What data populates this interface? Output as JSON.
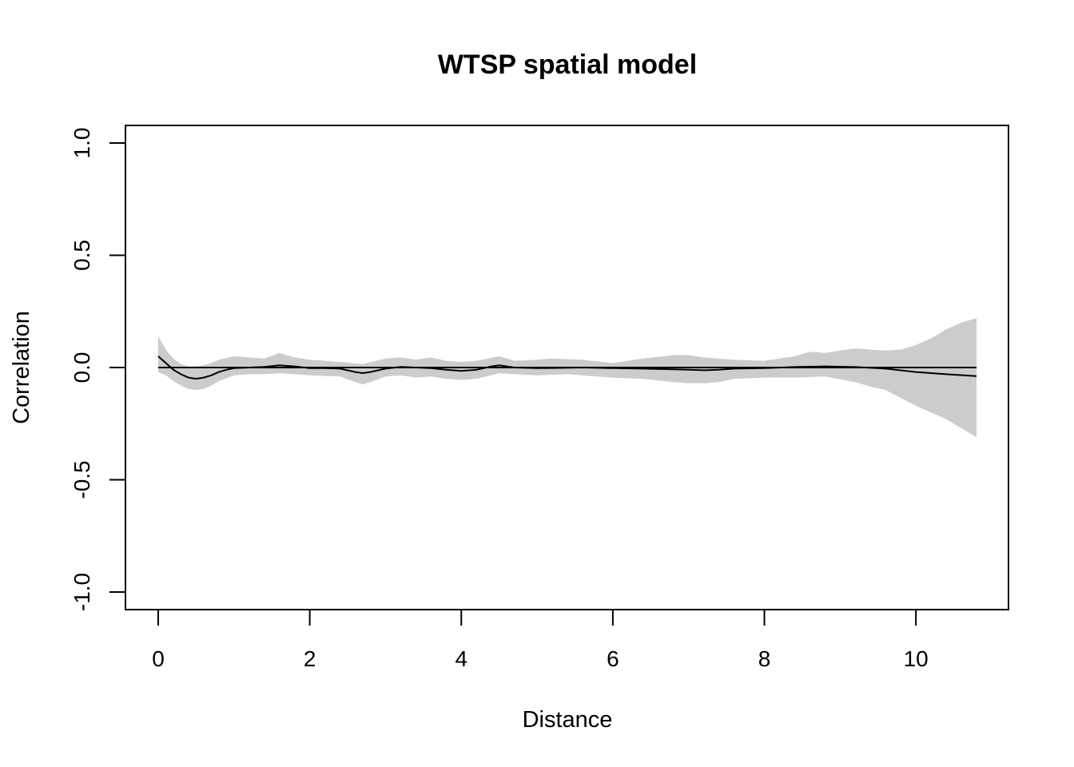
{
  "chart_data": {
    "type": "line",
    "title": "WTSP spatial model",
    "xlabel": "Distance",
    "ylabel": "Correlation",
    "xlim": [
      0,
      10.8
    ],
    "ylim": [
      -1.0,
      1.0
    ],
    "x_ticks": [
      0,
      2,
      4,
      6,
      8,
      10
    ],
    "x_tick_labels": [
      "0",
      "2",
      "4",
      "6",
      "8",
      "10"
    ],
    "y_ticks": [
      -1.0,
      -0.5,
      0.0,
      0.5,
      1.0
    ],
    "y_tick_labels": [
      "-1.0",
      "-0.5",
      "0.0",
      "0.5",
      "1.0"
    ],
    "grid": false,
    "legend": "none",
    "reference_line": 0.0,
    "colors": {
      "line": "#000000",
      "band": "#cccccc",
      "reference": "#000000"
    },
    "series": [
      {
        "values": [
          [
            0.0,
            0.05
          ],
          [
            0.1,
            0.02
          ],
          [
            0.2,
            -0.01
          ],
          [
            0.3,
            -0.03
          ],
          [
            0.4,
            -0.045
          ],
          [
            0.5,
            -0.05
          ],
          [
            0.6,
            -0.045
          ],
          [
            0.7,
            -0.035
          ],
          [
            0.8,
            -0.02
          ],
          [
            0.9,
            -0.01
          ],
          [
            1.0,
            -0.003
          ],
          [
            1.2,
            0.0
          ],
          [
            1.4,
            0.003
          ],
          [
            1.6,
            0.01
          ],
          [
            1.8,
            0.005
          ],
          [
            2.0,
            -0.003
          ],
          [
            2.2,
            -0.003
          ],
          [
            2.4,
            -0.005
          ],
          [
            2.6,
            -0.02
          ],
          [
            2.7,
            -0.025
          ],
          [
            2.8,
            -0.02
          ],
          [
            3.0,
            -0.005
          ],
          [
            3.2,
            0.003
          ],
          [
            3.4,
            0.0
          ],
          [
            3.6,
            -0.003
          ],
          [
            3.8,
            -0.01
          ],
          [
            4.0,
            -0.015
          ],
          [
            4.2,
            -0.01
          ],
          [
            4.4,
            0.005
          ],
          [
            4.5,
            0.01
          ],
          [
            4.7,
            0.0
          ],
          [
            5.0,
            -0.003
          ],
          [
            5.2,
            -0.002
          ],
          [
            5.6,
            0.0
          ],
          [
            6.0,
            -0.003
          ],
          [
            6.4,
            -0.005
          ],
          [
            6.8,
            -0.008
          ],
          [
            7.0,
            -0.01
          ],
          [
            7.2,
            -0.012
          ],
          [
            7.4,
            -0.01
          ],
          [
            7.6,
            -0.005
          ],
          [
            8.0,
            -0.003
          ],
          [
            8.4,
            0.002
          ],
          [
            8.8,
            0.005
          ],
          [
            9.2,
            0.002
          ],
          [
            9.6,
            -0.005
          ],
          [
            10.0,
            -0.02
          ],
          [
            10.4,
            -0.03
          ],
          [
            10.8,
            -0.038
          ]
        ]
      }
    ],
    "band": {
      "upper": [
        [
          0.0,
          0.14
        ],
        [
          0.1,
          0.08
        ],
        [
          0.2,
          0.04
        ],
        [
          0.3,
          0.015
        ],
        [
          0.4,
          0.005
        ],
        [
          0.5,
          0.005
        ],
        [
          0.6,
          0.01
        ],
        [
          0.7,
          0.02
        ],
        [
          0.8,
          0.035
        ],
        [
          1.0,
          0.05
        ],
        [
          1.2,
          0.045
        ],
        [
          1.4,
          0.04
        ],
        [
          1.6,
          0.065
        ],
        [
          1.8,
          0.045
        ],
        [
          2.0,
          0.035
        ],
        [
          2.4,
          0.025
        ],
        [
          2.7,
          0.015
        ],
        [
          3.0,
          0.04
        ],
        [
          3.2,
          0.045
        ],
        [
          3.4,
          0.035
        ],
        [
          3.6,
          0.045
        ],
        [
          3.8,
          0.03
        ],
        [
          4.0,
          0.025
        ],
        [
          4.2,
          0.03
        ],
        [
          4.5,
          0.05
        ],
        [
          4.7,
          0.03
        ],
        [
          5.0,
          0.035
        ],
        [
          5.2,
          0.04
        ],
        [
          5.6,
          0.035
        ],
        [
          6.0,
          0.02
        ],
        [
          6.4,
          0.04
        ],
        [
          6.8,
          0.055
        ],
        [
          7.0,
          0.055
        ],
        [
          7.2,
          0.045
        ],
        [
          7.6,
          0.035
        ],
        [
          8.0,
          0.03
        ],
        [
          8.4,
          0.05
        ],
        [
          8.6,
          0.07
        ],
        [
          8.8,
          0.065
        ],
        [
          9.0,
          0.075
        ],
        [
          9.2,
          0.085
        ],
        [
          9.6,
          0.075
        ],
        [
          9.8,
          0.08
        ],
        [
          10.0,
          0.1
        ],
        [
          10.2,
          0.13
        ],
        [
          10.4,
          0.17
        ],
        [
          10.6,
          0.2
        ],
        [
          10.8,
          0.22
        ]
      ],
      "lower": [
        [
          0.0,
          -0.02
        ],
        [
          0.1,
          -0.035
        ],
        [
          0.2,
          -0.06
        ],
        [
          0.3,
          -0.08
        ],
        [
          0.4,
          -0.095
        ],
        [
          0.5,
          -0.1
        ],
        [
          0.6,
          -0.095
        ],
        [
          0.7,
          -0.08
        ],
        [
          0.8,
          -0.06
        ],
        [
          1.0,
          -0.035
        ],
        [
          1.2,
          -0.03
        ],
        [
          1.4,
          -0.03
        ],
        [
          1.6,
          -0.025
        ],
        [
          1.8,
          -0.03
        ],
        [
          2.0,
          -0.035
        ],
        [
          2.4,
          -0.04
        ],
        [
          2.6,
          -0.065
        ],
        [
          2.7,
          -0.075
        ],
        [
          2.8,
          -0.065
        ],
        [
          3.0,
          -0.04
        ],
        [
          3.2,
          -0.035
        ],
        [
          3.4,
          -0.045
        ],
        [
          3.6,
          -0.04
        ],
        [
          3.8,
          -0.05
        ],
        [
          4.0,
          -0.055
        ],
        [
          4.2,
          -0.05
        ],
        [
          4.5,
          -0.025
        ],
        [
          4.7,
          -0.03
        ],
        [
          5.0,
          -0.035
        ],
        [
          5.4,
          -0.03
        ],
        [
          5.8,
          -0.04
        ],
        [
          6.0,
          -0.045
        ],
        [
          6.4,
          -0.05
        ],
        [
          6.8,
          -0.065
        ],
        [
          7.0,
          -0.07
        ],
        [
          7.2,
          -0.07
        ],
        [
          7.4,
          -0.065
        ],
        [
          7.6,
          -0.05
        ],
        [
          8.0,
          -0.045
        ],
        [
          8.4,
          -0.045
        ],
        [
          8.8,
          -0.04
        ],
        [
          9.2,
          -0.065
        ],
        [
          9.4,
          -0.085
        ],
        [
          9.6,
          -0.1
        ],
        [
          10.0,
          -0.17
        ],
        [
          10.4,
          -0.23
        ],
        [
          10.6,
          -0.27
        ],
        [
          10.8,
          -0.31
        ]
      ]
    }
  }
}
